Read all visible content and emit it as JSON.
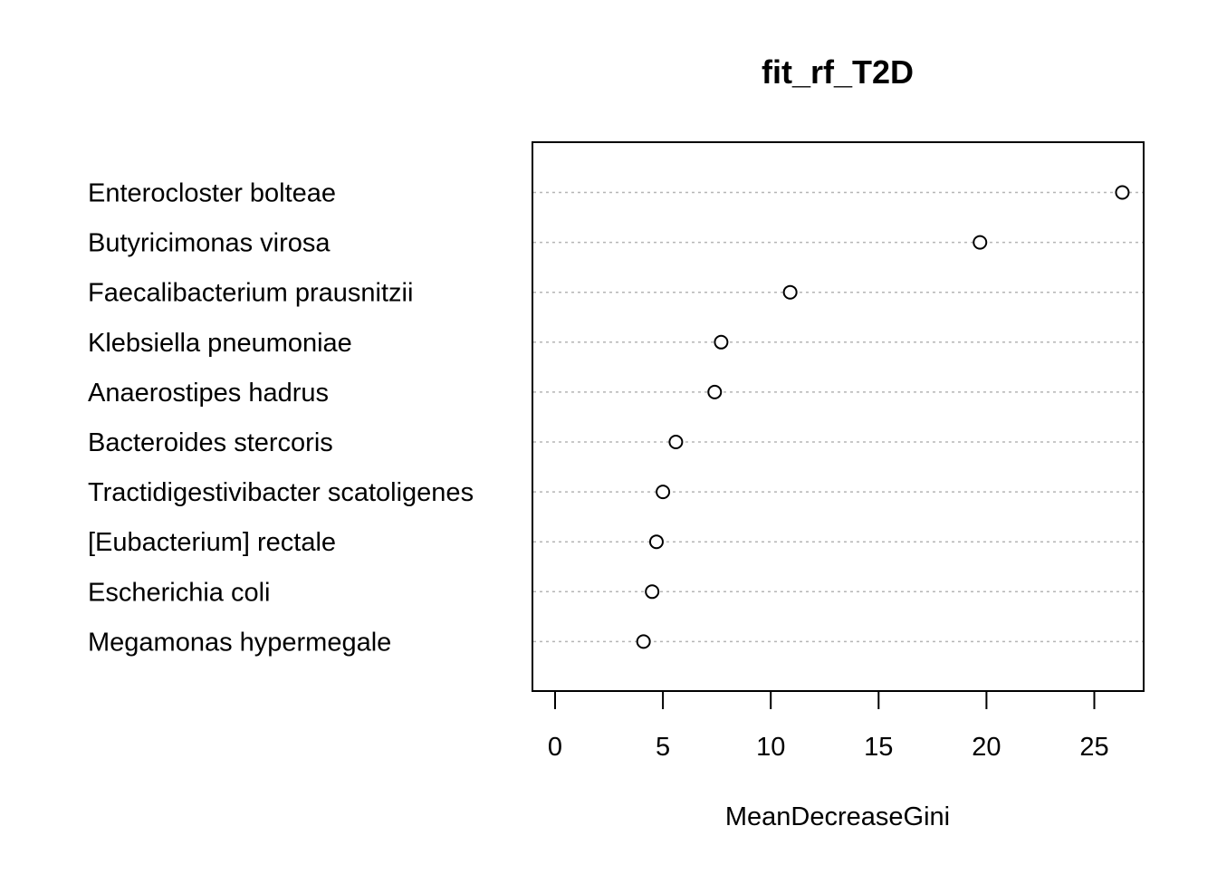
{
  "chart_data": {
    "type": "scatter",
    "title": "fit_rf_T2D",
    "xlabel": "MeanDecreaseGini",
    "ylabel": "",
    "xlim": [
      -1.0,
      27.4
    ],
    "x_ticks": [
      0,
      5,
      10,
      15,
      20,
      25
    ],
    "grid": "horizontal dotted lines per category",
    "categories": [
      "Enterocloster bolteae",
      "Butyricimonas virosa",
      "Faecalibacterium prausnitzii",
      "Klebsiella pneumoniae",
      "Anaerostipes hadrus",
      "Bacteroides stercoris",
      "Tractidigestivibacter scatoligenes",
      "[Eubacterium] rectale",
      "Escherichia coli",
      "Megamonas hypermegale"
    ],
    "values": [
      26.3,
      19.7,
      10.9,
      7.7,
      7.4,
      5.6,
      5.0,
      4.7,
      4.5,
      4.1
    ]
  }
}
